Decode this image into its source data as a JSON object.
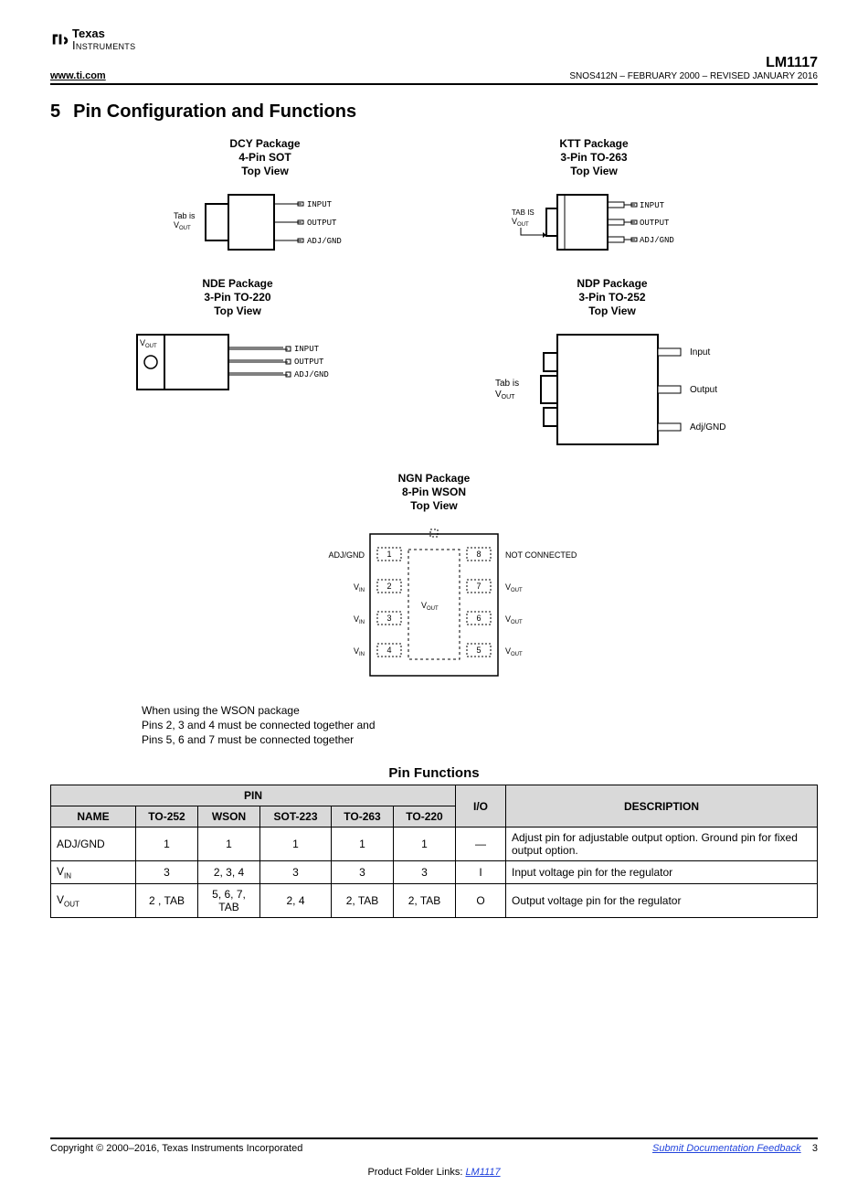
{
  "brand": {
    "name1": "Texas",
    "name2": "Instruments"
  },
  "header": {
    "url": "www.ti.com",
    "part": "LM1117",
    "rev": "SNOS412N – FEBRUARY 2000 – REVISED JANUARY 2016"
  },
  "section": {
    "num": "5",
    "title": "Pin Configuration and Functions"
  },
  "packages": {
    "dcy": {
      "l1": "DCY Package",
      "l2": "4-Pin SOT",
      "l3": "Top View",
      "tab": "Tab is",
      "vout": "VOUT",
      "p1": "INPUT",
      "p2": "OUTPUT",
      "p3": "ADJ/GND"
    },
    "ktt": {
      "l1": "KTT Package",
      "l2": "3-Pin TO-263",
      "l3": "Top View",
      "tab": "TAB IS",
      "vout": "VOUT",
      "p1": "INPUT",
      "p2": "OUTPUT",
      "p3": "ADJ/GND"
    },
    "nde": {
      "l1": "NDE Package",
      "l2": "3-Pin TO-220",
      "l3": "Top View",
      "vout": "VOUT",
      "p1": "INPUT",
      "p2": "OUTPUT",
      "p3": "ADJ/GND"
    },
    "ndp": {
      "l1": "NDP Package",
      "l2": "3-Pin TO-252",
      "l3": "Top View",
      "tab": "Tab is",
      "vout": "VOUT",
      "p1": "Input",
      "p2": "Output",
      "p3": "Adj/GND"
    },
    "ngn": {
      "l1": "NGN Package",
      "l2": "8-Pin WSON",
      "l3": "Top View",
      "center": "VOUT",
      "left": [
        "ADJ/GND",
        "VIN",
        "VIN",
        "VIN"
      ],
      "right": [
        "NOT CONNECTED",
        "VOUT",
        "VOUT",
        "VOUT"
      ],
      "lnums": [
        "1",
        "2",
        "3",
        "4"
      ],
      "rnums": [
        "8",
        "7",
        "6",
        "5"
      ]
    }
  },
  "note": {
    "l1": "When using the WSON package",
    "l2": "Pins 2, 3 and 4 must be connected together and",
    "l3": "Pins 5, 6 and 7 must be connected together"
  },
  "table": {
    "title": "Pin Functions",
    "headers": {
      "pin": "PIN",
      "name": "NAME",
      "c1": "TO-252",
      "c2": "WSON",
      "c3": "SOT-223",
      "c4": "TO-263",
      "c5": "TO-220",
      "io": "I/O",
      "desc": "DESCRIPTION"
    },
    "rows": [
      {
        "name": "ADJ/GND",
        "c1": "1",
        "c2": "1",
        "c3": "1",
        "c4": "1",
        "c5": "1",
        "io": "—",
        "desc": "Adjust pin for adjustable output option. Ground pin for fixed output option."
      },
      {
        "name": "VIN",
        "c1": "3",
        "c2": "2, 3, 4",
        "c3": "3",
        "c4": "3",
        "c5": "3",
        "io": "I",
        "desc": "Input voltage pin for the regulator"
      },
      {
        "name": "VOUT",
        "c1": "2 , TAB",
        "c2": "5, 6, 7, TAB",
        "c3": "2, 4",
        "c4": "2, TAB",
        "c5": "2, TAB",
        "io": "O",
        "desc": "Output voltage pin for the regulator"
      }
    ]
  },
  "footer": {
    "copyright": "Copyright © 2000–2016, Texas Instruments Incorporated",
    "feedback": "Submit Documentation Feedback",
    "pagenum": "3",
    "pftext": "Product Folder Links: ",
    "pflink": "LM1117"
  }
}
